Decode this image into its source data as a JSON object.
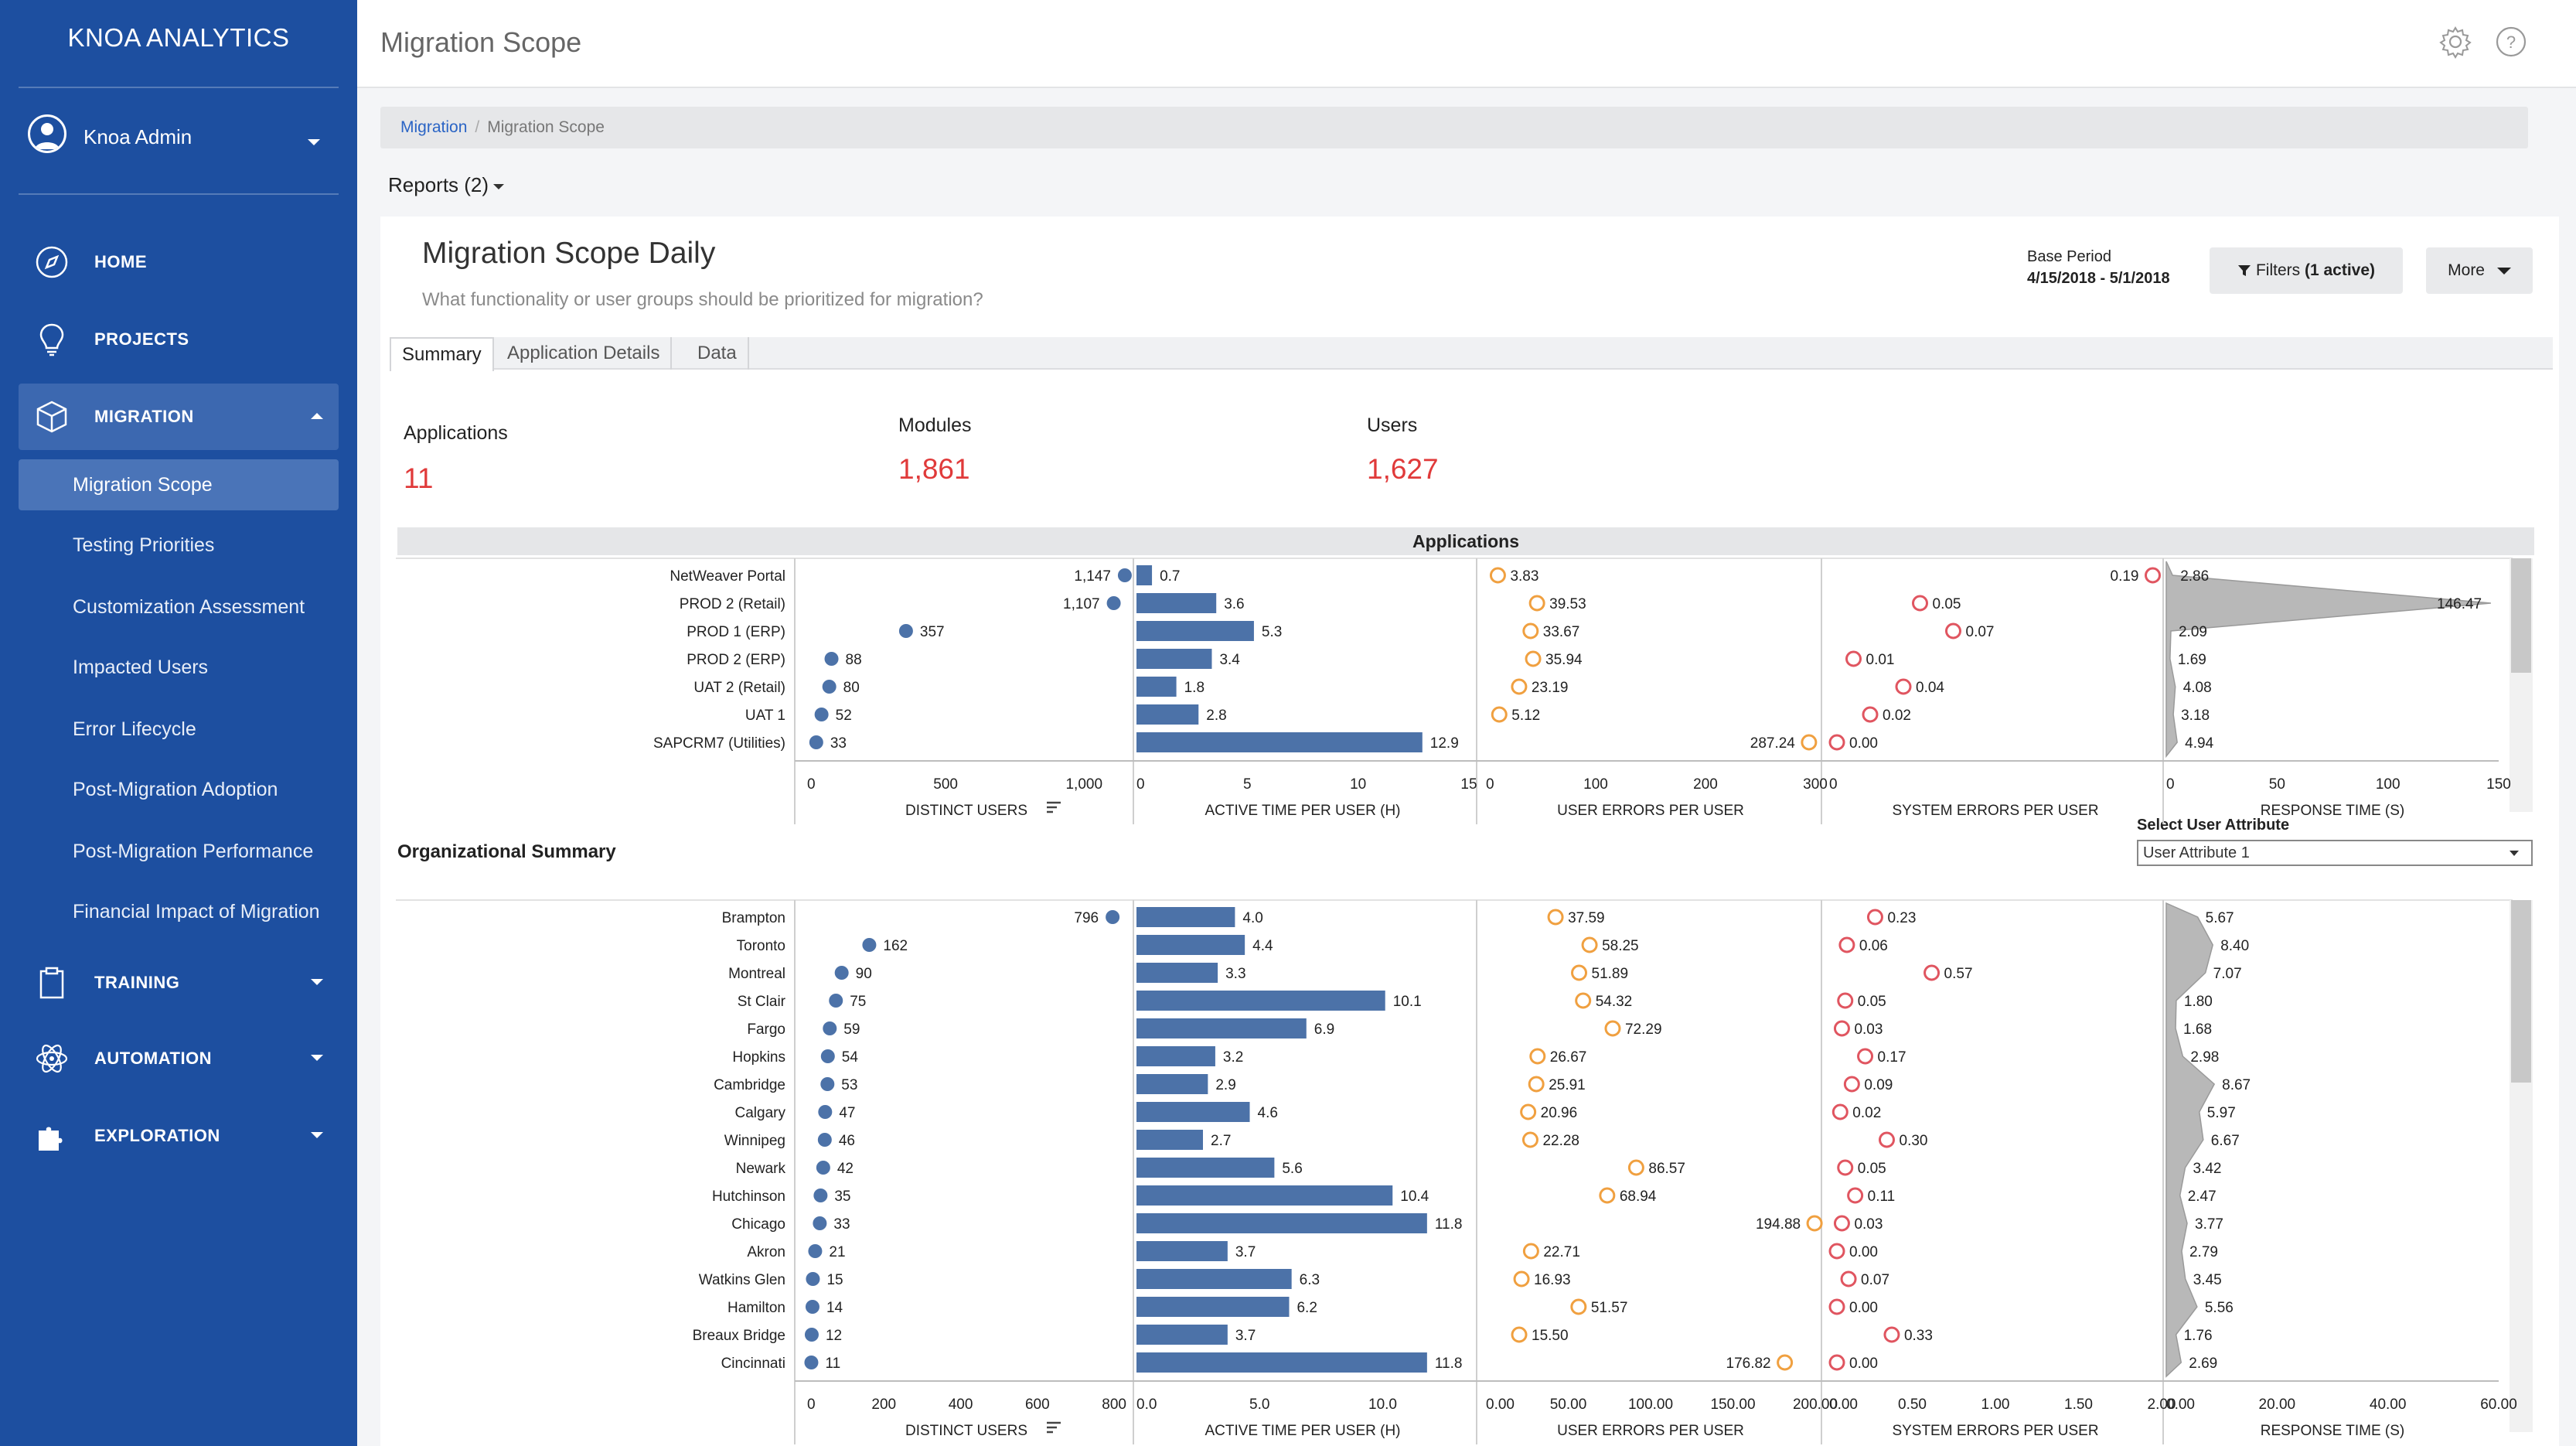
{
  "colors": {
    "sidebar": "#1d4fa0",
    "accent_red": "#e03a3a",
    "bar_blue": "#4c72a8",
    "orange": "#f0a040",
    "red_circle": "#e05560",
    "gray_area": "#b8b8b8"
  },
  "sidebar": {
    "brand": "KNOA ANALYTICS",
    "user": {
      "name": "Knoa Admin",
      "icon": "user-avatar-icon"
    },
    "nav": [
      {
        "label": "HOME",
        "icon": "compass-icon"
      },
      {
        "label": "PROJECTS",
        "icon": "lightbulb-icon"
      },
      {
        "label": "MIGRATION",
        "icon": "cube-icon",
        "expanded": true
      },
      {
        "label": "TRAINING",
        "icon": "clipboard-icon"
      },
      {
        "label": "AUTOMATION",
        "icon": "atom-icon"
      },
      {
        "label": "EXPLORATION",
        "icon": "puzzle-icon"
      }
    ],
    "migration_items": [
      "Migration Scope",
      "Testing Priorities",
      "Customization Assessment",
      "Impacted Users",
      "Error Lifecycle",
      "Post-Migration Adoption",
      "Post-Migration Performance",
      "Financial Impact of Migration"
    ]
  },
  "topbar": {
    "title": "Migration Scope",
    "icons": [
      "gear-icon",
      "help-icon"
    ]
  },
  "breadcrumb": {
    "link": "Migration",
    "current": "Migration Scope"
  },
  "reports_menu": "Reports (2)",
  "report": {
    "title": "Migration Scope Daily",
    "subtitle": "What functionality or user groups should be prioritized for migration?",
    "base_period_label": "Base Period",
    "base_period_dates": "4/15/2018 - 5/1/2018",
    "filters_button": "Filters",
    "filters_active": "(1 active)",
    "more_button": "More",
    "tabs": [
      "Summary",
      "Application Details",
      "Data"
    ]
  },
  "kpis": [
    {
      "label": "Applications",
      "value": "11"
    },
    {
      "label": "Modules",
      "value": "1,861"
    },
    {
      "label": "Users",
      "value": "1,627"
    }
  ],
  "applications_header": "Applications",
  "org_title": "Organizational Summary",
  "attribute": {
    "label": "Select User Attribute",
    "value": "User Attribute 1"
  },
  "chart_data": [
    {
      "type": "bar",
      "title": "Applications",
      "categories": [
        "NetWeaver Portal",
        "PROD 2 (Retail)",
        "PROD 1 (ERP)",
        "PROD 2 (ERP)",
        "UAT 2 (Retail)",
        "UAT 1",
        "SAPCRM7 (Utilities)"
      ],
      "panels": [
        {
          "xlabel": "DISTINCT USERS",
          "mark": "dot",
          "values": [
            1147,
            1107,
            357,
            88,
            80,
            52,
            33
          ],
          "labels": [
            "1,147",
            "1,107",
            "357",
            "88",
            "80",
            "52",
            "33"
          ],
          "ticks": [
            "0",
            "500",
            "1,000"
          ],
          "tick_values": [
            0,
            500,
            1000
          ],
          "xlim": [
            0,
            1150
          ],
          "label_side": "left-for-large"
        },
        {
          "xlabel": "ACTIVE TIME PER USER (H)",
          "mark": "bar",
          "values": [
            0.7,
            3.6,
            5.3,
            3.4,
            1.8,
            2.8,
            12.9
          ],
          "labels": [
            "0.7",
            "3.6",
            "5.3",
            "3.4",
            "1.8",
            "2.8",
            "12.9"
          ],
          "ticks": [
            "0",
            "5",
            "10",
            "15"
          ],
          "tick_values": [
            0,
            5,
            10,
            15
          ],
          "xlim": [
            0,
            15
          ]
        },
        {
          "xlabel": "USER ERRORS PER USER",
          "mark": "ring-orange",
          "values": [
            3.83,
            39.53,
            33.67,
            35.94,
            23.19,
            5.12,
            287.24
          ],
          "labels": [
            "3.83",
            "39.53",
            "33.67",
            "35.94",
            "23.19",
            "5.12",
            "287.24"
          ],
          "ticks": [
            "0",
            "100",
            "200",
            "300"
          ],
          "tick_values": [
            0,
            100,
            200,
            300
          ],
          "xlim": [
            0,
            300
          ]
        },
        {
          "xlabel": "SYSTEM ERRORS PER USER",
          "mark": "ring-red",
          "values": [
            0.19,
            0.05,
            0.07,
            0.01,
            0.04,
            0.02,
            0.0
          ],
          "labels": [
            "0.19",
            "0.05",
            "0.07",
            "0.01",
            "0.04",
            "0.02",
            "0.00"
          ],
          "ticks": [
            "0"
          ],
          "tick_values": [
            0
          ],
          "xlim": [
            0,
            0.2
          ]
        },
        {
          "xlabel": "RESPONSE TIME (S)",
          "mark": "area",
          "values": [
            2.86,
            146.47,
            2.09,
            1.69,
            4.08,
            3.18,
            4.94
          ],
          "labels": [
            "2.86",
            "146.47",
            "2.09",
            "1.69",
            "4.08",
            "3.18",
            "4.94"
          ],
          "ticks": [
            "0",
            "50",
            "100",
            "150"
          ],
          "tick_values": [
            0,
            50,
            100,
            150
          ],
          "xlim": [
            0,
            150
          ]
        }
      ]
    },
    {
      "type": "bar",
      "title": "Organizational Summary",
      "categories": [
        "Brampton",
        "Toronto",
        "Montreal",
        "St Clair",
        "Fargo",
        "Hopkins",
        "Cambridge",
        "Calgary",
        "Winnipeg",
        "Newark",
        "Hutchinson",
        "Chicago",
        "Akron",
        "Watkins Glen",
        "Hamilton",
        "Breaux Bridge",
        "Cincinnati"
      ],
      "panels": [
        {
          "xlabel": "DISTINCT USERS",
          "mark": "dot",
          "values": [
            796,
            162,
            90,
            75,
            59,
            54,
            53,
            47,
            46,
            42,
            35,
            33,
            21,
            15,
            14,
            12,
            11
          ],
          "labels": [
            "796",
            "162",
            "90",
            "75",
            "59",
            "54",
            "53",
            "47",
            "46",
            "42",
            "35",
            "33",
            "21",
            "15",
            "14",
            "12",
            "11"
          ],
          "ticks": [
            "0",
            "200",
            "400",
            "600",
            "800"
          ],
          "tick_values": [
            0,
            200,
            400,
            600,
            800
          ],
          "xlim": [
            0,
            830
          ],
          "label_side": "left-for-large"
        },
        {
          "xlabel": "ACTIVE TIME PER USER (H)",
          "mark": "bar",
          "values": [
            4.0,
            4.4,
            3.3,
            10.1,
            6.9,
            3.2,
            2.9,
            4.6,
            2.7,
            5.6,
            10.4,
            11.8,
            3.7,
            6.3,
            6.2,
            3.7,
            11.8
          ],
          "labels": [
            "4.0",
            "4.4",
            "3.3",
            "10.1",
            "6.9",
            "3.2",
            "2.9",
            "4.6",
            "2.7",
            "5.6",
            "10.4",
            "11.8",
            "3.7",
            "6.3",
            "6.2",
            "3.7",
            "11.8"
          ],
          "ticks": [
            "0.0",
            "5.0",
            "10.0"
          ],
          "tick_values": [
            0,
            5,
            10
          ],
          "xlim": [
            0,
            13.5
          ]
        },
        {
          "xlabel": "USER ERRORS PER USER",
          "mark": "ring-orange",
          "values": [
            37.59,
            58.25,
            51.89,
            54.32,
            72.29,
            26.67,
            25.91,
            20.96,
            22.28,
            86.57,
            68.94,
            194.88,
            22.71,
            16.93,
            51.57,
            15.5,
            176.82
          ],
          "labels": [
            "37.59",
            "58.25",
            "51.89",
            "54.32",
            "72.29",
            "26.67",
            "25.91",
            "20.96",
            "22.28",
            "86.57",
            "68.94",
            "194.88",
            "22.71",
            "16.93",
            "51.57",
            "15.50",
            "176.82"
          ],
          "ticks": [
            "0.00",
            "50.00",
            "100.00",
            "150.00",
            "200.00"
          ],
          "tick_values": [
            0,
            50,
            100,
            150,
            200
          ],
          "xlim": [
            0,
            200
          ]
        },
        {
          "xlabel": "SYSTEM ERRORS PER USER",
          "mark": "ring-red",
          "values": [
            0.23,
            0.06,
            0.57,
            0.05,
            0.03,
            0.17,
            0.09,
            0.02,
            0.3,
            0.05,
            0.11,
            0.03,
            0.0,
            0.07,
            0.0,
            0.33,
            0.0
          ],
          "labels": [
            "0.23",
            "0.06",
            "0.57",
            "0.05",
            "0.03",
            "0.17",
            "0.09",
            "0.02",
            "0.30",
            "0.05",
            "0.11",
            "0.03",
            "0.00",
            "0.07",
            "0.00",
            "0.33",
            "0.00"
          ],
          "ticks": [
            "0.00",
            "0.50",
            "1.00",
            "1.50",
            "2.00"
          ],
          "tick_values": [
            0,
            0.5,
            1,
            1.5,
            2
          ],
          "xlim": [
            0,
            2
          ]
        },
        {
          "xlabel": "RESPONSE TIME (S)",
          "mark": "area",
          "values": [
            5.67,
            8.4,
            7.07,
            1.8,
            1.68,
            2.98,
            8.67,
            5.97,
            6.67,
            3.42,
            2.47,
            3.77,
            2.79,
            3.45,
            5.56,
            1.76,
            2.69
          ],
          "labels": [
            "5.67",
            "8.40",
            "7.07",
            "1.80",
            "1.68",
            "2.98",
            "8.67",
            "5.97",
            "6.67",
            "3.42",
            "2.47",
            "3.77",
            "2.79",
            "3.45",
            "5.56",
            "1.76",
            "2.69"
          ],
          "ticks": [
            "0.00",
            "20.00",
            "40.00",
            "60.00"
          ],
          "tick_values": [
            0,
            20,
            40,
            60
          ],
          "xlim": [
            0,
            60
          ]
        }
      ]
    }
  ]
}
